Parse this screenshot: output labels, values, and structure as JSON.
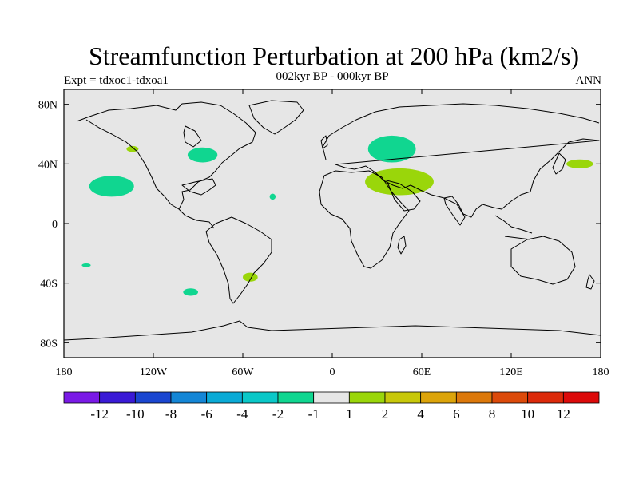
{
  "header": {
    "title": "Streamfunction Perturbation at 200 hPa (km2/s)",
    "subtitle": "002kyr BP - 000kyr BP",
    "left_label": "Expt = tdxoc1-tdxoa1",
    "right_label": "ANN"
  },
  "map": {
    "background_color": "#e6e6e6",
    "coastline_color": "#000000",
    "lat_ticks": [
      "80N",
      "40N",
      "0",
      "40S",
      "80S"
    ],
    "lon_ticks": [
      "180",
      "120W",
      "60W",
      "0",
      "60E",
      "120E",
      "180"
    ]
  },
  "colorbar": {
    "colors": [
      "#7a1ae6",
      "#3a1ad6",
      "#1a46d0",
      "#1486d6",
      "#0aaad6",
      "#0ac8c8",
      "#10d690",
      "#e6e6e6",
      "#9ad60a",
      "#c8c80a",
      "#dca40a",
      "#dc780a",
      "#dc4a0a",
      "#dc2a0a",
      "#dc0a0a"
    ],
    "labels": [
      "-12",
      "-10",
      "-8",
      "-6",
      "-4",
      "-2",
      "-1",
      "1",
      "2",
      "4",
      "6",
      "8",
      "10",
      "12"
    ]
  },
  "features": [
    {
      "name": "pacific-negative-anomaly",
      "color": "#10d690",
      "lon": -148,
      "lat": 25,
      "rx": 15,
      "ry": 7
    },
    {
      "name": "north-pacific-positive-anomaly",
      "color": "#9ad60a",
      "lon": -134,
      "lat": 50,
      "rx": 4,
      "ry": 2
    },
    {
      "name": "north-america-negative-anomaly",
      "color": "#10d690",
      "lon": -87,
      "lat": 46,
      "rx": 10,
      "ry": 5
    },
    {
      "name": "atlantic-negative-anomaly",
      "color": "#10d690",
      "lon": -40,
      "lat": 18,
      "rx": 2,
      "ry": 2
    },
    {
      "name": "russia-negative-anomaly",
      "color": "#10d690",
      "lon": 40,
      "lat": 50,
      "rx": 16,
      "ry": 9
    },
    {
      "name": "middle-east-positive-anomaly",
      "color": "#9ad60a",
      "lon": 45,
      "lat": 28,
      "rx": 23,
      "ry": 9
    },
    {
      "name": "west-pacific-positive-anomaly",
      "color": "#9ad60a",
      "lon": 166,
      "lat": 40,
      "rx": 9,
      "ry": 3
    },
    {
      "name": "south-pacific-negative-anomaly",
      "color": "#10d690",
      "lon": -165,
      "lat": -28,
      "rx": 3,
      "ry": 1.2
    },
    {
      "name": "south-atlantic-positive-anomaly",
      "color": "#9ad60a",
      "lon": -55,
      "lat": -36,
      "rx": 5,
      "ry": 3
    },
    {
      "name": "southeast-pacific-negative-anomaly",
      "color": "#10d690",
      "lon": -95,
      "lat": -46,
      "rx": 5,
      "ry": 2.5
    }
  ]
}
